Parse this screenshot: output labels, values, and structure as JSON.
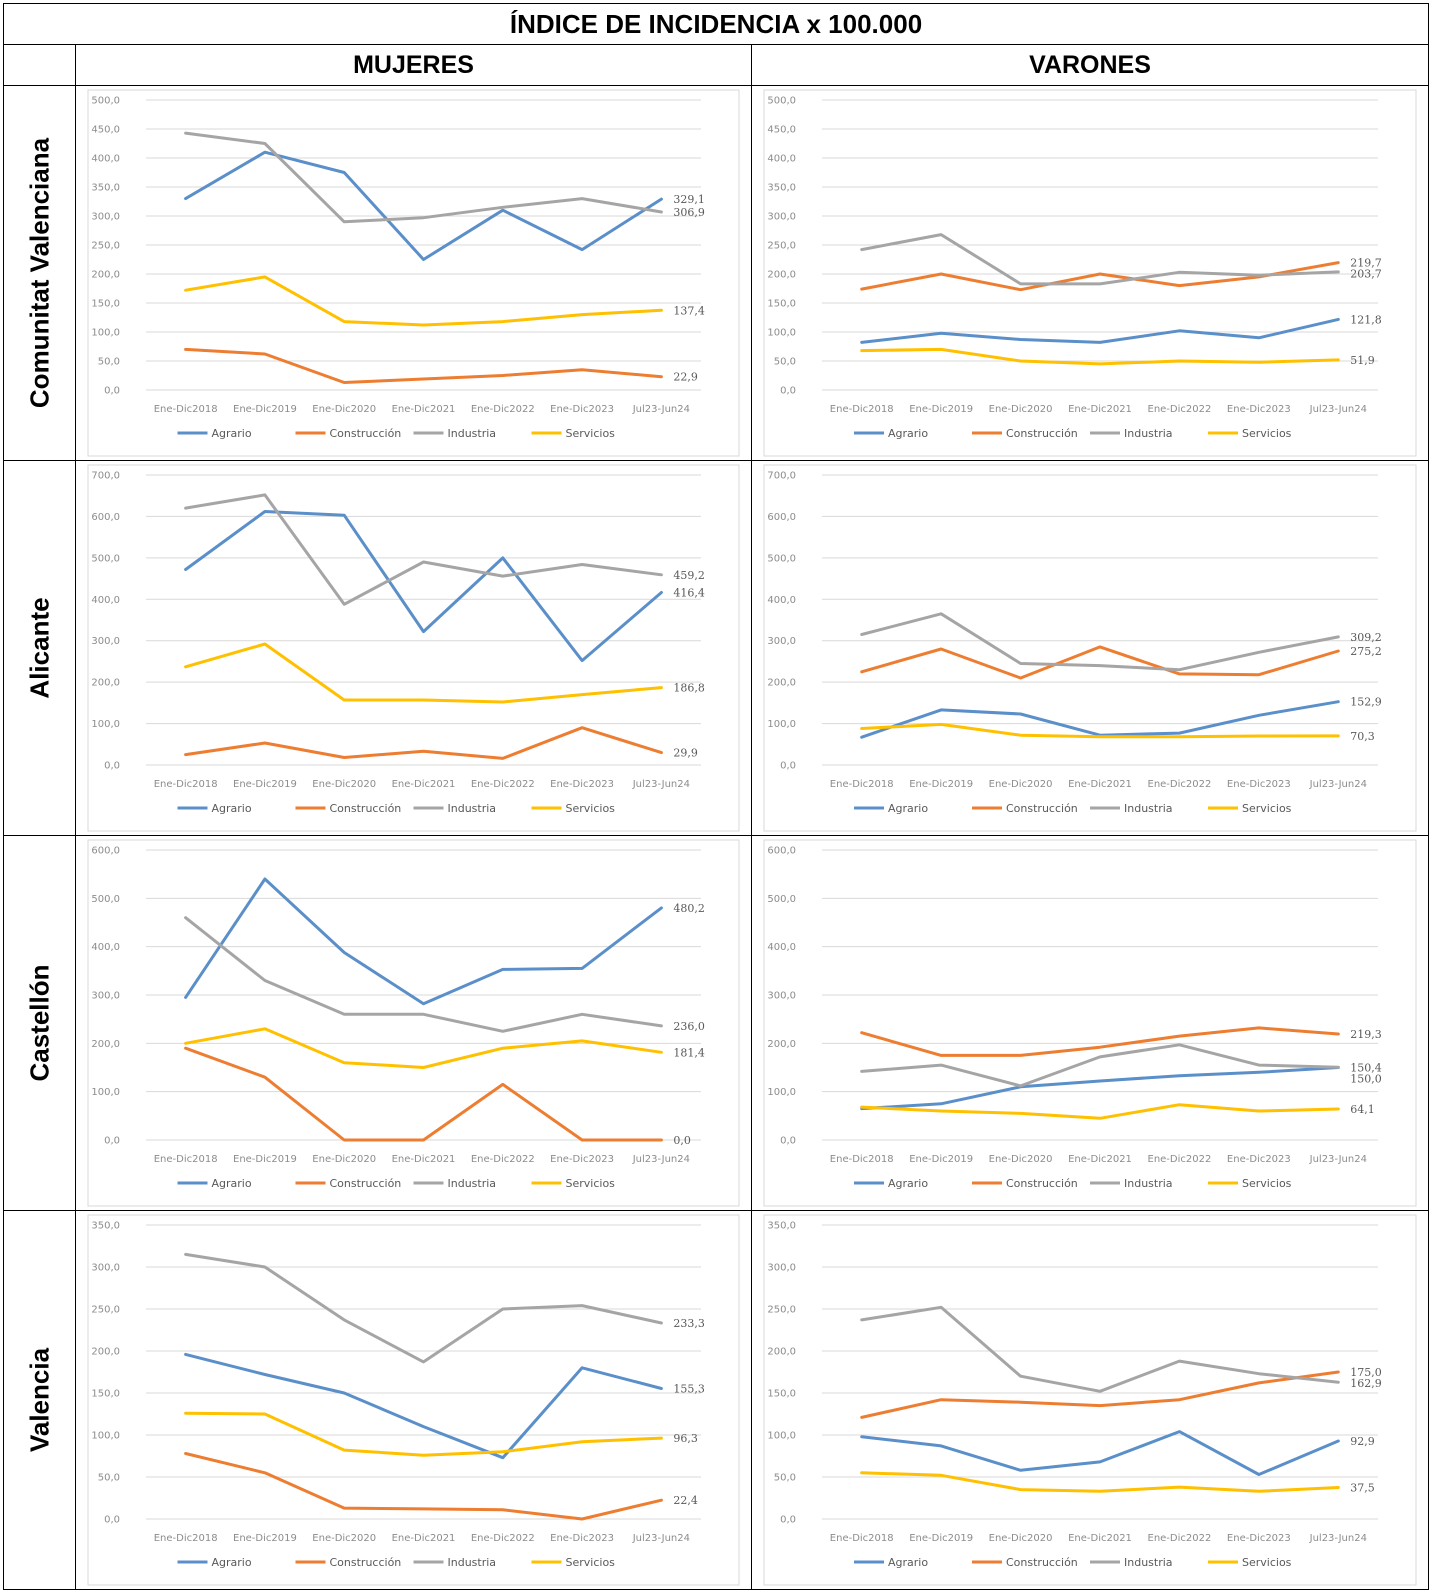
{
  "header": {
    "title": "ÍNDICE DE INCIDENCIA x 100.000",
    "col_mujeres": "MUJERES",
    "col_varones": "VARONES"
  },
  "rows": [
    "Comunitat Valenciana",
    "Alicante",
    "Castellón",
    "Valencia"
  ],
  "colors": {
    "Agrario": "#5b8fc9",
    "Construcción": "#ed7d31",
    "Industria": "#a5a5a5",
    "Servicios": "#ffc000"
  },
  "chart_data": [
    {
      "type": "line",
      "panel": "Comunitat Valenciana — MUJERES",
      "categories": [
        "Ene-Dic2018",
        "Ene-Dic2019",
        "Ene-Dic2020",
        "Ene-Dic2021",
        "Ene-Dic2022",
        "Ene-Dic2023",
        "Jul23-Jun24"
      ],
      "ylim": [
        0,
        500
      ],
      "ystep": 50,
      "legend": "bottom",
      "series": [
        {
          "name": "Agrario",
          "values": [
            330,
            410,
            375,
            225,
            310,
            242,
            329.1
          ],
          "end_label": "329,1"
        },
        {
          "name": "Construcción",
          "values": [
            70,
            62,
            13,
            19,
            25,
            35,
            22.9
          ],
          "end_label": "22,9"
        },
        {
          "name": "Industria",
          "values": [
            443,
            425,
            290,
            297,
            315,
            330,
            306.9
          ],
          "end_label": "306,9"
        },
        {
          "name": "Servicios",
          "values": [
            172,
            195,
            118,
            112,
            118,
            130,
            137.4
          ],
          "end_label": "137,4"
        }
      ]
    },
    {
      "type": "line",
      "panel": "Comunitat Valenciana — VARONES",
      "categories": [
        "Ene-Dic2018",
        "Ene-Dic2019",
        "Ene-Dic2020",
        "Ene-Dic2021",
        "Ene-Dic2022",
        "Ene-Dic2023",
        "Jul23-Jun24"
      ],
      "ylim": [
        0,
        500
      ],
      "ystep": 50,
      "legend": "bottom",
      "series": [
        {
          "name": "Agrario",
          "values": [
            82,
            98,
            87,
            82,
            102,
            90,
            121.8
          ],
          "end_label": "121,8"
        },
        {
          "name": "Construcción",
          "values": [
            174,
            200,
            173,
            200,
            180,
            195,
            219.7
          ],
          "end_label": "219,7"
        },
        {
          "name": "Industria",
          "values": [
            242,
            268,
            183,
            183,
            203,
            198,
            203.7
          ],
          "end_label": "203,7"
        },
        {
          "name": "Servicios",
          "values": [
            68,
            70,
            50,
            45,
            50,
            48,
            51.9
          ],
          "end_label": "51,9"
        }
      ]
    },
    {
      "type": "line",
      "panel": "Alicante — MUJERES",
      "categories": [
        "Ene-Dic2018",
        "Ene-Dic2019",
        "Ene-Dic2020",
        "Ene-Dic2021",
        "Ene-Dic2022",
        "Ene-Dic2023",
        "Jul23-Jun24"
      ],
      "ylim": [
        0,
        700
      ],
      "ystep": 100,
      "legend": "bottom",
      "series": [
        {
          "name": "Agrario",
          "values": [
            472,
            612,
            603,
            322,
            500,
            252,
            416.4
          ],
          "end_label": "416,4"
        },
        {
          "name": "Construcción",
          "values": [
            25,
            53,
            18,
            33,
            16,
            90,
            29.9
          ],
          "end_label": "29,9"
        },
        {
          "name": "Industria",
          "values": [
            620,
            652,
            388,
            490,
            456,
            484,
            459.2
          ],
          "end_label": "459,2"
        },
        {
          "name": "Servicios",
          "values": [
            237,
            292,
            157,
            157,
            152,
            170,
            186.8
          ],
          "end_label": "186,8"
        }
      ]
    },
    {
      "type": "line",
      "panel": "Alicante — VARONES",
      "categories": [
        "Ene-Dic2018",
        "Ene-Dic2019",
        "Ene-Dic2020",
        "Ene-Dic2021",
        "Ene-Dic2022",
        "Ene-Dic2023",
        "Jul23-Jun24"
      ],
      "ylim": [
        0,
        700
      ],
      "ystep": 100,
      "legend": "bottom",
      "series": [
        {
          "name": "Agrario",
          "values": [
            67,
            133,
            123,
            72,
            77,
            120,
            152.9
          ],
          "end_label": "152,9"
        },
        {
          "name": "Construcción",
          "values": [
            225,
            280,
            210,
            285,
            220,
            218,
            275.2
          ],
          "end_label": "275,2"
        },
        {
          "name": "Industria",
          "values": [
            315,
            365,
            245,
            240,
            230,
            272,
            309.2
          ],
          "end_label": "309,2"
        },
        {
          "name": "Servicios",
          "values": [
            88,
            98,
            72,
            68,
            68,
            70,
            70.3
          ],
          "end_label": "70,3"
        }
      ]
    },
    {
      "type": "line",
      "panel": "Castellón — MUJERES",
      "categories": [
        "Ene-Dic2018",
        "Ene-Dic2019",
        "Ene-Dic2020",
        "Ene-Dic2021",
        "Ene-Dic2022",
        "Ene-Dic2023",
        "Jul23-Jun24"
      ],
      "ylim": [
        0,
        600
      ],
      "ystep": 100,
      "legend": "bottom",
      "series": [
        {
          "name": "Agrario",
          "values": [
            295,
            540,
            388,
            282,
            353,
            355,
            480.2
          ],
          "end_label": "480,2"
        },
        {
          "name": "Construcción",
          "values": [
            190,
            130,
            0,
            0,
            115,
            0,
            0.0
          ],
          "end_label": "0,0"
        },
        {
          "name": "Industria",
          "values": [
            460,
            330,
            260,
            260,
            225,
            260,
            236.0
          ],
          "end_label": "236,0"
        },
        {
          "name": "Servicios",
          "values": [
            200,
            230,
            160,
            150,
            190,
            205,
            181.4
          ],
          "end_label": "181,4"
        }
      ]
    },
    {
      "type": "line",
      "panel": "Castellón — VARONES",
      "categories": [
        "Ene-Dic2018",
        "Ene-Dic2019",
        "Ene-Dic2020",
        "Ene-Dic2021",
        "Ene-Dic2022",
        "Ene-Dic2023",
        "Jul23-Jun24"
      ],
      "ylim": [
        0,
        600
      ],
      "ystep": 100,
      "legend": "bottom",
      "series": [
        {
          "name": "Agrario",
          "values": [
            65,
            75,
            110,
            122,
            133,
            140,
            150.0
          ],
          "end_label": "150,0"
        },
        {
          "name": "Construcción",
          "values": [
            222,
            175,
            175,
            192,
            215,
            232,
            219.3
          ],
          "end_label": "219,3"
        },
        {
          "name": "Industria",
          "values": [
            142,
            155,
            112,
            172,
            197,
            155,
            150.4
          ],
          "end_label": "150,4"
        },
        {
          "name": "Servicios",
          "values": [
            68,
            60,
            55,
            45,
            73,
            60,
            64.1
          ],
          "end_label": "64,1"
        }
      ]
    },
    {
      "type": "line",
      "panel": "Valencia — MUJERES",
      "categories": [
        "Ene-Dic2018",
        "Ene-Dic2019",
        "Ene-Dic2020",
        "Ene-Dic2021",
        "Ene-Dic2022",
        "Ene-Dic2023",
        "Jul23-Jun24"
      ],
      "ylim": [
        0,
        350
      ],
      "ystep": 50,
      "legend": "bottom",
      "series": [
        {
          "name": "Agrario",
          "values": [
            196,
            172,
            150,
            110,
            73,
            180,
            155.3
          ],
          "end_label": "155,3"
        },
        {
          "name": "Construcción",
          "values": [
            78,
            55,
            13,
            12,
            11,
            0,
            22.4
          ],
          "end_label": "22,4"
        },
        {
          "name": "Industria",
          "values": [
            315,
            300,
            237,
            187,
            250,
            254,
            233.3
          ],
          "end_label": "233,3"
        },
        {
          "name": "Servicios",
          "values": [
            126,
            125,
            82,
            76,
            80,
            92,
            96.3
          ],
          "end_label": "96,3"
        }
      ]
    },
    {
      "type": "line",
      "panel": "Valencia — VARONES",
      "categories": [
        "Ene-Dic2018",
        "Ene-Dic2019",
        "Ene-Dic2020",
        "Ene-Dic2021",
        "Ene-Dic2022",
        "Ene-Dic2023",
        "Jul23-Jun24"
      ],
      "ylim": [
        0,
        350
      ],
      "ystep": 50,
      "legend": "bottom",
      "series": [
        {
          "name": "Agrario",
          "values": [
            98,
            87,
            58,
            68,
            104,
            53,
            92.9
          ],
          "end_label": "92,9"
        },
        {
          "name": "Construcción",
          "values": [
            121,
            142,
            139,
            135,
            142,
            162,
            175.0
          ],
          "end_label": "175,0"
        },
        {
          "name": "Industria",
          "values": [
            237,
            252,
            170,
            152,
            188,
            173,
            162.9
          ],
          "end_label": "162,9"
        },
        {
          "name": "Servicios",
          "values": [
            55,
            52,
            35,
            33,
            38,
            33,
            37.5
          ],
          "end_label": "37,5"
        }
      ]
    }
  ]
}
